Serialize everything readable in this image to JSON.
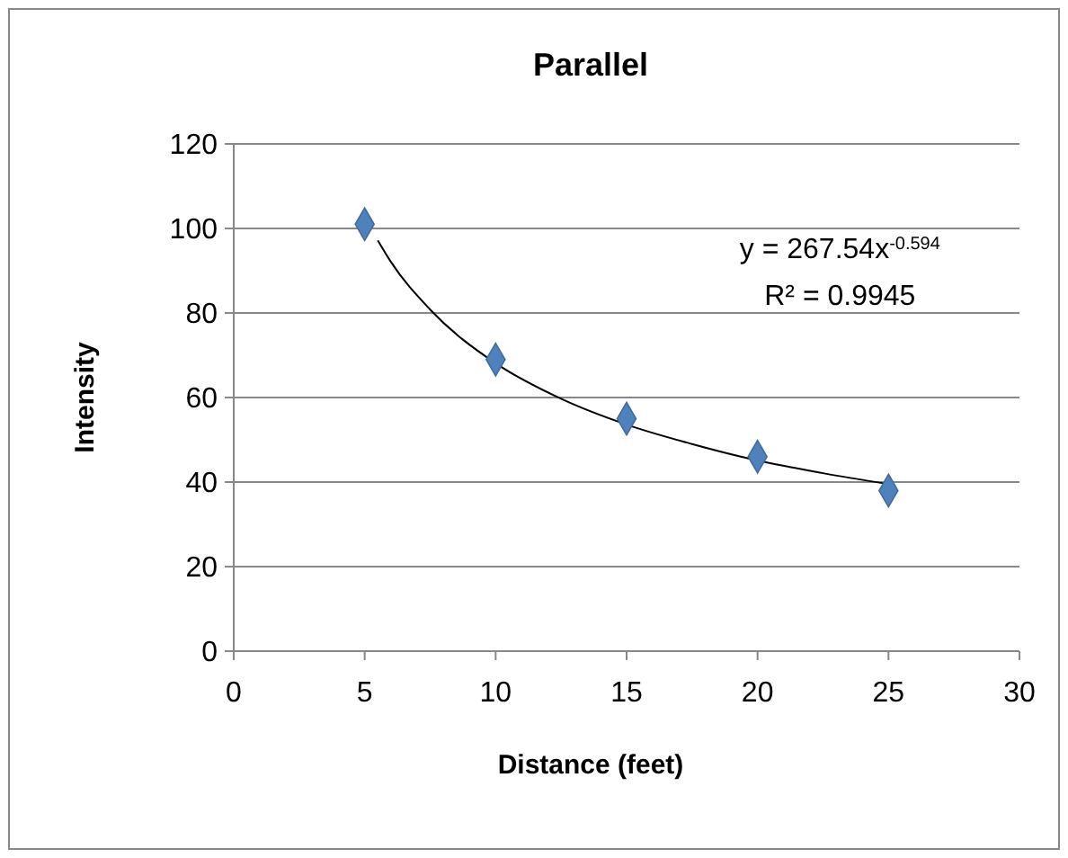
{
  "chart_data": {
    "type": "scatter",
    "title": "Parallel",
    "xlabel": "Distance (feet)",
    "ylabel": "Intensity",
    "xlim": [
      0,
      30
    ],
    "xticks": [
      0,
      5,
      10,
      15,
      20,
      25,
      30
    ],
    "ylim": [
      0,
      120
    ],
    "yticks": [
      0,
      20,
      40,
      60,
      80,
      100,
      120
    ],
    "grid": "y",
    "marker": "diamond",
    "annotations": [
      "y = 267.54x$^{-0.594}$",
      "R² = 0.9945"
    ],
    "series": [
      {
        "color": "#4f81bd",
        "x": [
          5,
          10,
          15,
          20,
          25
        ],
        "values": [
          101,
          69,
          55,
          46,
          38
        ]
      },
      {
        "type": "line",
        "color": "#000000",
        "marker": "none",
        "x": [
          5.5,
          6,
          7.5,
          10,
          12.5,
          15,
          17.5,
          20,
          22.5,
          25
        ],
        "values": [
          97.2,
          92.1,
          80.8,
          68.1,
          59.7,
          53.6,
          49.0,
          45.1,
          42.1,
          39.5
        ]
      }
    ]
  }
}
